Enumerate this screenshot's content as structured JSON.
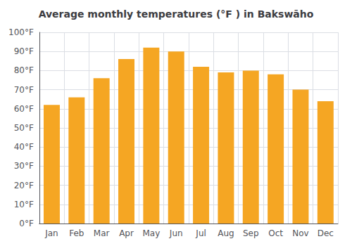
{
  "chart_data": {
    "type": "bar",
    "title": "Average monthly temperatures (°F ) in Bakswāho",
    "categories": [
      "Jan",
      "Feb",
      "Mar",
      "Apr",
      "May",
      "Jun",
      "Jul",
      "Aug",
      "Sep",
      "Oct",
      "Nov",
      "Dec"
    ],
    "values": [
      62,
      66,
      76,
      86,
      92,
      90,
      82,
      79,
      80,
      78,
      70,
      64
    ],
    "color": "#F5A623",
    "ylim": [
      0,
      100
    ],
    "yticks": [
      {
        "value": 0,
        "label": "0°F"
      },
      {
        "value": 10,
        "label": "10°F"
      },
      {
        "value": 20,
        "label": "20°F"
      },
      {
        "value": 30,
        "label": "30°F"
      },
      {
        "value": 40,
        "label": "40°F"
      },
      {
        "value": 50,
        "label": "50°F"
      },
      {
        "value": 60,
        "label": "60°F"
      },
      {
        "value": 70,
        "label": "70°F"
      },
      {
        "value": 80,
        "label": "80°F"
      },
      {
        "value": 90,
        "label": "90°F"
      },
      {
        "value": 100,
        "label": "100°F"
      }
    ],
    "grid": true
  }
}
